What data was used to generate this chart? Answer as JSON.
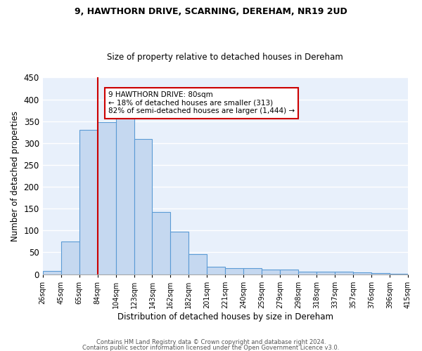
{
  "title1": "9, HAWTHORN DRIVE, SCARNING, DEREHAM, NR19 2UD",
  "title2": "Size of property relative to detached houses in Dereham",
  "xlabel": "Distribution of detached houses by size in Dereham",
  "ylabel": "Number of detached properties",
  "bin_labels": [
    "26sqm",
    "45sqm",
    "65sqm",
    "84sqm",
    "104sqm",
    "123sqm",
    "143sqm",
    "162sqm",
    "182sqm",
    "201sqm",
    "221sqm",
    "240sqm",
    "259sqm",
    "279sqm",
    "298sqm",
    "318sqm",
    "337sqm",
    "357sqm",
    "376sqm",
    "396sqm",
    "415sqm"
  ],
  "bar_heights": [
    7,
    75,
    330,
    348,
    363,
    310,
    143,
    97,
    46,
    17,
    13,
    13,
    11,
    10,
    5,
    6,
    5,
    4,
    2,
    1
  ],
  "bar_color": "#c5d8f0",
  "bar_edge_color": "#5b9bd5",
  "ylim": [
    0,
    450
  ],
  "yticks": [
    0,
    50,
    100,
    150,
    200,
    250,
    300,
    350,
    400,
    450
  ],
  "annotation_line1": "9 HAWTHORN DRIVE: 80sqm",
  "annotation_line2": "← 18% of detached houses are smaller (313)",
  "annotation_line3": "82% of semi-detached houses are larger (1,444) →",
  "footer1": "Contains HM Land Registry data © Crown copyright and database right 2024.",
  "footer2": "Contains public sector information licensed under the Open Government Licence v3.0.",
  "bg_color": "#e8f0fb",
  "annotation_box_color": "white",
  "annotation_box_edge": "#cc0000",
  "red_line_color": "#cc0000",
  "grid_color": "white"
}
